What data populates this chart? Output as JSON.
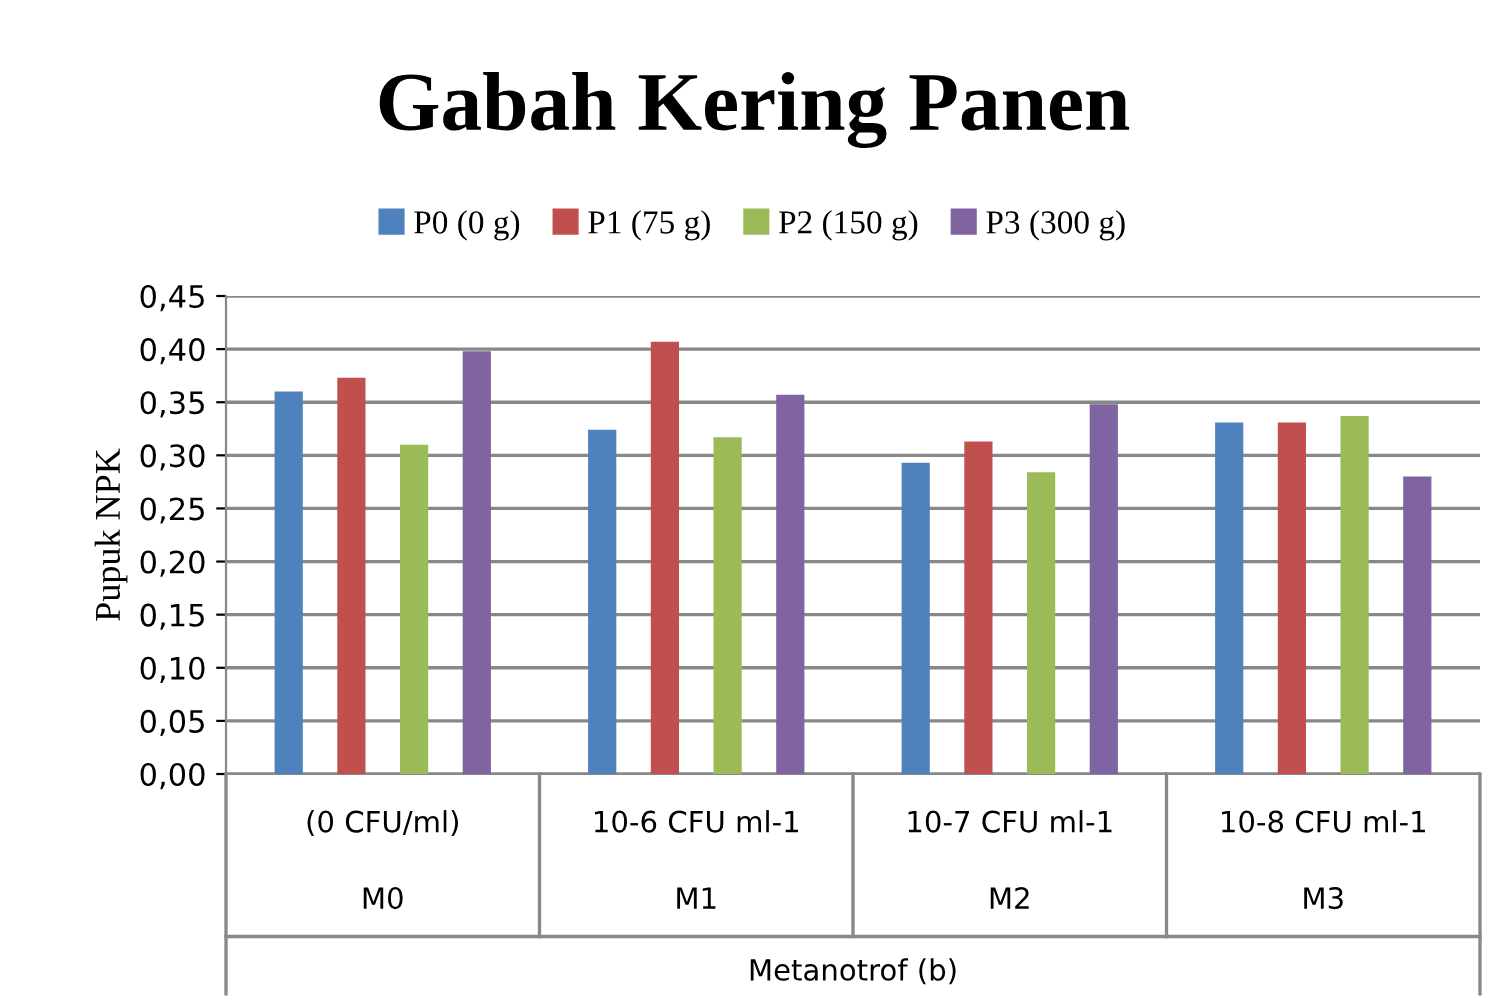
{
  "chart_data": {
    "type": "bar",
    "title": "Gabah Kering Panen",
    "ylabel": "Pupuk NPK",
    "annotations": [
      "Metanotrof (b)"
    ],
    "categories": [
      "(0 CFU/ml)\nM0",
      "10-6 CFU ml-1\nM1",
      "10-7 CFU ml-1\nM2",
      "10-8 CFU ml-1\nM3"
    ],
    "series": [
      {
        "name": "P0 (0 g)",
        "color": "#4f81bd",
        "values": [
          0.36,
          0.324,
          0.293,
          0.331
        ]
      },
      {
        "name": "P1 (75 g)",
        "color": "#c0504d",
        "values": [
          0.373,
          0.407,
          0.313,
          0.331
        ]
      },
      {
        "name": "P2 (150 g)",
        "color": "#9bbb59",
        "values": [
          0.31,
          0.317,
          0.284,
          0.337
        ]
      },
      {
        "name": "P3 (300 g)",
        "color": "#8064a2",
        "values": [
          0.398,
          0.357,
          0.348,
          0.28
        ]
      }
    ],
    "ylim": [
      0,
      0.45
    ],
    "yticks": [
      {
        "value": 0,
        "label": "0,00"
      },
      {
        "value": 0.05,
        "label": "0,05"
      },
      {
        "value": 0.1,
        "label": "0,10"
      },
      {
        "value": 0.15,
        "label": "0,15"
      },
      {
        "value": 0.2,
        "label": "0,20"
      },
      {
        "value": 0.25,
        "label": "0,25"
      },
      {
        "value": 0.3,
        "label": "0,30"
      },
      {
        "value": 0.35,
        "label": "0,35"
      },
      {
        "value": 0.4,
        "label": "0,40"
      },
      {
        "value": 0.45,
        "label": "0,45"
      }
    ],
    "grid": "y",
    "legend": "top"
  }
}
